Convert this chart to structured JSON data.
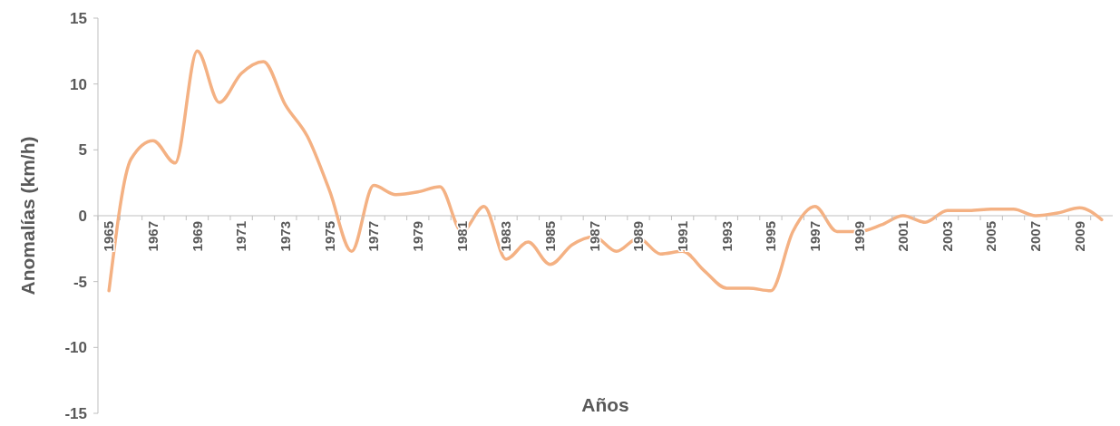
{
  "chart_data": {
    "type": "line",
    "xlabel": "Años",
    "ylabel": "Anomalías (km/h)",
    "categories": [
      "1965",
      null,
      "1967",
      null,
      "1969",
      null,
      "1971",
      null,
      "1973",
      null,
      "1975",
      null,
      "1977",
      null,
      "1979",
      null,
      "1981",
      null,
      "1983",
      null,
      "1985",
      null,
      "1987",
      null,
      "1989",
      null,
      "1991",
      null,
      "1993",
      null,
      "1995",
      null,
      "1997",
      null,
      "1999",
      null,
      "2001",
      null,
      "2003",
      null,
      "2005",
      null,
      "2007",
      null,
      "2009",
      null
    ],
    "series": [
      {
        "color": "#f4b183",
        "values": [
          -5.7,
          4.3,
          5.7,
          4.0,
          12.5,
          8.6,
          10.8,
          11.7,
          8.4,
          6.0,
          1.9,
          -2.7,
          2.3,
          1.6,
          1.8,
          2.2,
          -1.2,
          0.7,
          -3.3,
          -2.0,
          -3.7,
          -2.2,
          -1.6,
          -2.7,
          -1.7,
          -2.9,
          -2.7,
          -4.2,
          -5.5,
          -5.5,
          -5.7,
          -1.2,
          0.7,
          -1.2,
          -1.2,
          -0.7,
          0,
          -0.5,
          0.4,
          0.4,
          0.5,
          0.5,
          0,
          0.2,
          0.6,
          -0.3
        ]
      }
    ],
    "ylim": [
      -15,
      15
    ],
    "yticks": [
      -15,
      -10,
      -5,
      0,
      5,
      10,
      15
    ],
    "grid": false,
    "marker": "none",
    "line_style": "solid"
  }
}
